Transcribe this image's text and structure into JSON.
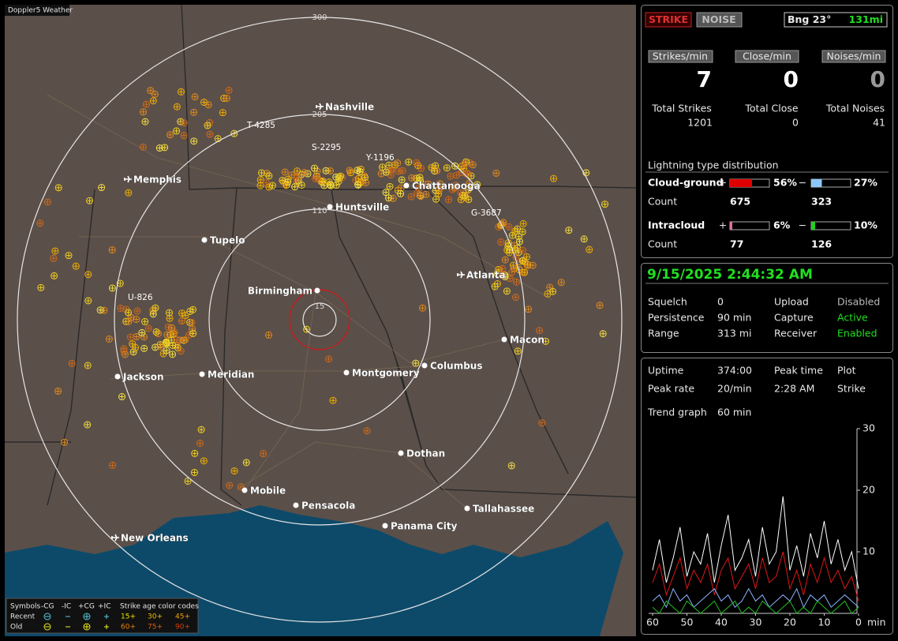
{
  "map": {
    "window_title": "Doppler5 Weather",
    "ring_labels": [
      "15",
      "110",
      "205",
      "300"
    ],
    "cities": [
      "Nashville",
      "Memphis",
      "Chattanooga",
      "Huntsville",
      "Tupelo",
      "Birmingham",
      "Atlanta",
      "Macon",
      "Columbus",
      "Montgomery",
      "Meridian",
      "Jackson",
      "Dothan",
      "Mobile",
      "Pensacola",
      "Tallahassee",
      "Panama City",
      "New Orleans"
    ],
    "storm_labels": [
      "T-4285",
      "S-2295",
      "Y-1196",
      "G-3687",
      "U-826"
    ],
    "legend": {
      "headers": [
        "Symbols",
        "-CG",
        "-IC",
        "+CG",
        "+IC",
        "Strike age color codes"
      ],
      "rows": [
        {
          "name": "Recent",
          "ages": [
            "15+",
            "30+",
            "45+"
          ]
        },
        {
          "name": "Old",
          "ages": [
            "60+",
            "75+",
            "90+"
          ]
        }
      ]
    }
  },
  "status": {
    "mode_buttons": [
      "STRIKE",
      "NOISE"
    ],
    "bearing": "Bng 23°",
    "distance": "131mi",
    "rate_labels": [
      "Strikes/min",
      "Close/min",
      "Noises/min"
    ],
    "rates": [
      7,
      0,
      0
    ],
    "total_labels": [
      "Total Strikes",
      "Total Close",
      "Total Noises"
    ],
    "totals": [
      1201,
      0,
      41
    ],
    "distribution": {
      "title": "Lightning type distribution",
      "signs": [
        "+",
        "−"
      ],
      "count_label": "Count",
      "rows": [
        {
          "name": "Cloud-ground",
          "plus": {
            "value": 56,
            "label": "56%"
          },
          "minus": {
            "value": 27,
            "label": "27%"
          },
          "counts": [
            675,
            323
          ]
        },
        {
          "name": "Intracloud",
          "plus": {
            "value": 6,
            "label": "6%"
          },
          "minus": {
            "value": 10,
            "label": "10%"
          },
          "counts": [
            77,
            126
          ]
        }
      ]
    }
  },
  "settings": {
    "datetime": "9/15/2025 2:44:32 AM",
    "rows": [
      [
        "Squelch",
        "0",
        "Upload",
        "Disabled"
      ],
      [
        "Persistence",
        "90 min",
        "Capture",
        "Active"
      ],
      [
        "Range",
        "313 mi",
        "Receiver",
        "Enabled"
      ]
    ]
  },
  "stats": {
    "rows": [
      [
        "Uptime",
        "374:00",
        "Peak time",
        "Plot"
      ],
      [
        "Peak rate",
        "20/min",
        "2:28 AM",
        "Strike"
      ],
      [
        "Trend graph",
        "60 min"
      ]
    ]
  },
  "chart_data": {
    "type": "line",
    "x": [
      60,
      58,
      56,
      54,
      52,
      50,
      48,
      46,
      44,
      42,
      40,
      38,
      36,
      34,
      32,
      30,
      28,
      26,
      24,
      22,
      20,
      18,
      16,
      14,
      12,
      10,
      8,
      6,
      4,
      2,
      0
    ],
    "series": [
      {
        "color": "#ffffff",
        "values": [
          7,
          12,
          5,
          9,
          14,
          6,
          10,
          8,
          13,
          5,
          11,
          16,
          7,
          9,
          12,
          6,
          14,
          8,
          10,
          19,
          7,
          11,
          6,
          13,
          9,
          15,
          8,
          12,
          7,
          10,
          4
        ]
      },
      {
        "color": "#e01818",
        "values": [
          5,
          8,
          3,
          6,
          9,
          4,
          7,
          5,
          8,
          3,
          7,
          9,
          4,
          6,
          8,
          4,
          9,
          5,
          6,
          10,
          4,
          7,
          3,
          8,
          5,
          9,
          5,
          7,
          4,
          6,
          2
        ]
      },
      {
        "color": "#8fb0ff",
        "values": [
          2,
          3,
          1,
          4,
          2,
          3,
          1,
          2,
          3,
          4,
          2,
          3,
          1,
          2,
          4,
          2,
          3,
          1,
          2,
          3,
          2,
          4,
          1,
          3,
          2,
          3,
          1,
          2,
          3,
          2,
          1
        ]
      },
      {
        "color": "#20c020",
        "values": [
          1,
          0,
          2,
          1,
          0,
          2,
          1,
          0,
          1,
          2,
          0,
          1,
          2,
          0,
          1,
          0,
          2,
          1,
          0,
          1,
          2,
          0,
          1,
          0,
          2,
          1,
          0,
          1,
          2,
          0,
          1
        ]
      }
    ],
    "xlim": [
      60,
      0
    ],
    "ylim": [
      0,
      30
    ],
    "xticks": [
      60,
      50,
      40,
      30,
      20,
      10,
      0
    ],
    "yticks": [
      10,
      20,
      30
    ],
    "xlabel": "min"
  }
}
